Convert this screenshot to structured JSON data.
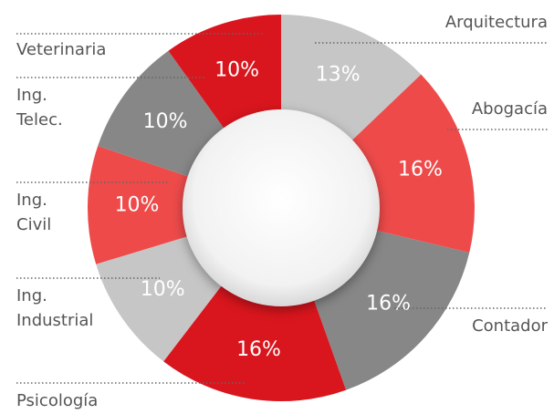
{
  "chart_data": {
    "type": "donut",
    "categories": [
      "Arquitectura",
      "Abogacía",
      "Contador",
      "Psicología",
      "Ing.\nIndustrial",
      "Ing.\nCivil",
      "Ing.\nTelec.",
      "Veterinaria"
    ],
    "values": [
      13,
      16,
      16,
      16,
      10,
      10,
      10,
      10
    ],
    "value_labels": [
      "13%",
      "16%",
      "16%",
      "16%",
      "10%",
      "10%",
      "10%",
      "10%"
    ],
    "colors": [
      "#c6c6c6",
      "#ee4a4a",
      "#878787",
      "#d9151d",
      "#c6c6c6",
      "#ee4a4a",
      "#878787",
      "#d9151d"
    ]
  }
}
